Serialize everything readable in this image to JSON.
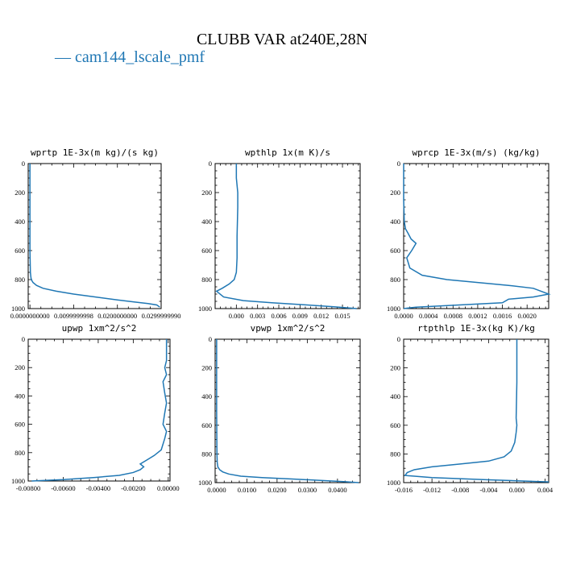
{
  "figure": {
    "title": "CLUBB VAR at240E,28N",
    "legend": [
      {
        "label": "— cam144_lscale_pmf",
        "color": "#1f77b4"
      }
    ]
  },
  "chart_data": [
    {
      "type": "line",
      "title": "wprtp   1E-3x(m kg)/(s kg)",
      "xlim": [
        -0.0004,
        0.03
      ],
      "ylim": [
        1000,
        0
      ],
      "xticks": [
        0.0,
        0.0099999998,
        0.02,
        0.029999999
      ],
      "xtick_labels": [
        "0.0000000000",
        "0.0099999998",
        "0.0200000000",
        "0.0299999990"
      ],
      "yticks": [
        0,
        200,
        400,
        600,
        800,
        1000
      ],
      "ytick_labels": [
        "0",
        "200",
        "400",
        "600",
        "800",
        "1000"
      ],
      "series": [
        {
          "color": "#1f77b4",
          "x": [
            0.0,
            0.0,
            0.0,
            0.0001,
            0.0002,
            0.0003,
            0.0007,
            0.0015,
            0.003,
            0.006,
            0.01,
            0.015,
            0.02,
            0.024,
            0.027,
            0.029,
            0.0297
          ],
          "y": [
            0,
            300,
            600,
            750,
            780,
            800,
            820,
            840,
            860,
            880,
            900,
            920,
            940,
            955,
            965,
            975,
            990
          ]
        }
      ]
    },
    {
      "type": "line",
      "title": "wpthlp   1x(m K)/s",
      "xlim": [
        -0.003,
        0.0175
      ],
      "ylim": [
        1000,
        0
      ],
      "xticks": [
        0.0,
        0.003,
        0.006,
        0.009,
        0.012,
        0.015
      ],
      "xtick_labels": [
        "0.000",
        "0.003",
        "0.006",
        "0.009",
        "0.012",
        "0.015"
      ],
      "yticks": [
        0,
        200,
        400,
        600,
        800,
        1000
      ],
      "ytick_labels": [
        "0",
        "200",
        "400",
        "600",
        "800",
        "1000"
      ],
      "series": [
        {
          "color": "#1f77b4",
          "x": [
            0.0,
            0.0,
            0.0002,
            0.0002,
            0.0001,
            0.0001,
            0.0,
            -0.0003,
            -0.001,
            -0.002,
            -0.0028,
            -0.0018,
            0.001,
            0.005,
            0.01,
            0.014,
            0.017
          ],
          "y": [
            0,
            100,
            200,
            300,
            500,
            650,
            750,
            800,
            830,
            860,
            880,
            920,
            945,
            960,
            975,
            988,
            1000
          ]
        }
      ]
    },
    {
      "type": "line",
      "title": "wprcp   1E-3x(m/s) (kg/kg)",
      "xlim": [
        0.0,
        0.00235
      ],
      "ylim": [
        1000,
        0
      ],
      "xticks": [
        0.0,
        0.0004,
        0.0008,
        0.0012,
        0.0016,
        0.002
      ],
      "xtick_labels": [
        "0.0000",
        "0.0004",
        "0.0008",
        "0.0012",
        "0.0016",
        "0.0020"
      ],
      "yticks": [
        0,
        200,
        400,
        600,
        800,
        1000
      ],
      "ytick_labels": [
        "0",
        "200",
        "400",
        "600",
        "800",
        "1000"
      ],
      "series": [
        {
          "color": "#1f77b4",
          "x": [
            0.0,
            0.0,
            1e-05,
            3e-05,
            7e-05,
            0.00012,
            0.0002,
            0.00013,
            5e-05,
            0.0001,
            0.0003,
            0.0007,
            0.0012,
            0.0017,
            0.0021,
            0.00235,
            0.0021,
            0.0017,
            0.0016,
            0.0009,
            0.0002,
            0.0
          ],
          "y": [
            0,
            250,
            400,
            450,
            480,
            520,
            550,
            600,
            650,
            720,
            770,
            800,
            820,
            840,
            860,
            900,
            920,
            935,
            960,
            975,
            990,
            1000
          ]
        }
      ]
    },
    {
      "type": "line",
      "title": "upwp   1xm^2/s^2",
      "xlim": [
        -0.008,
        0.0001
      ],
      "ylim": [
        1000,
        0
      ],
      "xticks": [
        -0.008,
        -0.006,
        -0.004,
        -0.002,
        0.0
      ],
      "xtick_labels": [
        "-0.00800",
        "-0.00600",
        "-0.00400",
        "-0.00200",
        "0.00000"
      ],
      "yticks": [
        0,
        200,
        400,
        600,
        800,
        1000
      ],
      "ytick_labels": [
        "0",
        "200",
        "400",
        "600",
        "800",
        "1000"
      ],
      "series": [
        {
          "color": "#1f77b4",
          "x": [
            -0.0001,
            -0.0001,
            -0.0002,
            -0.0001,
            -0.0003,
            -0.0002,
            -0.0001,
            -0.0002,
            -0.0003,
            -0.0001,
            -0.0002,
            -0.0004,
            -0.0008,
            -0.0012,
            -0.0016,
            -0.0014,
            -0.0016,
            -0.002,
            -0.0028,
            -0.0042,
            -0.006,
            -0.0078
          ],
          "y": [
            0,
            150,
            200,
            250,
            300,
            380,
            450,
            520,
            600,
            650,
            700,
            780,
            820,
            850,
            880,
            900,
            920,
            940,
            960,
            975,
            990,
            1000
          ]
        }
      ]
    },
    {
      "type": "line",
      "title": "vpwp   1xm^2/s^2",
      "xlim": [
        -0.0005,
        0.0475
      ],
      "ylim": [
        1000,
        0
      ],
      "xticks": [
        0.0,
        0.01,
        0.02,
        0.03,
        0.04
      ],
      "xtick_labels": [
        "0.0000",
        "0.0100",
        "0.0200",
        "0.0300",
        "0.0400"
      ],
      "yticks": [
        0,
        200,
        400,
        600,
        800,
        1000
      ],
      "ytick_labels": [
        "0",
        "200",
        "400",
        "600",
        "800",
        "1000"
      ],
      "series": [
        {
          "color": "#1f77b4",
          "x": [
            0.0,
            0.0,
            0.0001,
            0.0002,
            0.0004,
            0.001,
            0.002,
            0.004,
            0.008,
            0.015,
            0.025,
            0.035,
            0.042,
            0.047
          ],
          "y": [
            0,
            500,
            800,
            860,
            890,
            910,
            925,
            940,
            955,
            965,
            975,
            985,
            993,
            1000
          ]
        }
      ]
    },
    {
      "type": "line",
      "title": "rtpthlp   1E-3x(kg K)/kg",
      "xlim": [
        -0.016,
        0.0045
      ],
      "ylim": [
        1000,
        0
      ],
      "xticks": [
        -0.016,
        -0.012,
        -0.008,
        -0.004,
        0.0,
        0.004
      ],
      "xtick_labels": [
        "-0.016",
        "-0.012",
        "-0.008",
        "-0.004",
        "0.000",
        "0.004"
      ],
      "yticks": [
        0,
        200,
        400,
        600,
        800,
        1000
      ],
      "ytick_labels": [
        "0",
        "200",
        "400",
        "600",
        "800",
        "1000"
      ],
      "series": [
        {
          "color": "#1f77b4",
          "x": [
            0.0,
            0.0,
            -0.0001,
            0.0,
            -0.0001,
            -0.0003,
            -0.0008,
            -0.0018,
            -0.004,
            -0.008,
            -0.012,
            -0.0145,
            -0.0155,
            -0.0158,
            -0.012,
            -0.004,
            0.0045
          ],
          "y": [
            0,
            300,
            550,
            600,
            650,
            720,
            780,
            820,
            850,
            870,
            890,
            910,
            930,
            950,
            965,
            980,
            995
          ]
        }
      ]
    }
  ]
}
